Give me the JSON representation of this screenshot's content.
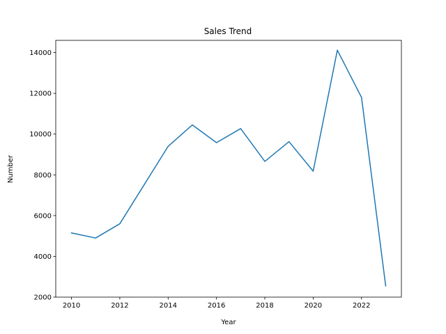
{
  "chart_data": {
    "type": "line",
    "title": "Sales Trend",
    "xlabel": "Year",
    "ylabel": "Number",
    "xlim": [
      2009.35,
      2023.65
    ],
    "ylim": [
      2000,
      14600
    ],
    "x_ticks": [
      "2010",
      "2012",
      "2014",
      "2016",
      "2018",
      "2020",
      "2022"
    ],
    "y_ticks": [
      "2000",
      "4000",
      "6000",
      "8000",
      "10000",
      "12000",
      "14000"
    ],
    "grid": false,
    "series": [
      {
        "color": "#1f77b4",
        "x": [
          2010,
          2011,
          2012,
          2013,
          2014,
          2015,
          2016,
          2017,
          2018,
          2019,
          2020,
          2021,
          2022,
          2023
        ],
        "y": [
          5150,
          4900,
          5600,
          7500,
          9400,
          10450,
          9580,
          10270,
          8660,
          9630,
          8180,
          14120,
          11800,
          2550
        ]
      }
    ]
  }
}
